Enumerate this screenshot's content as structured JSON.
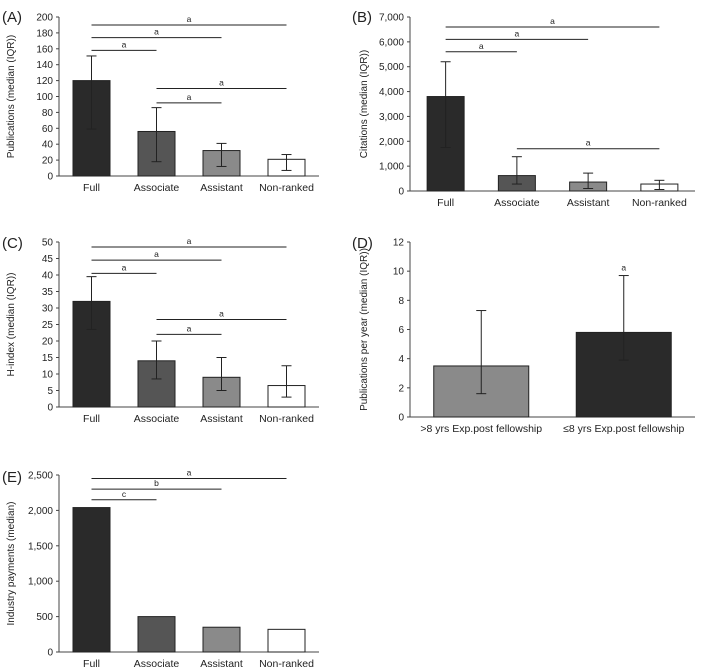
{
  "chart_data": [
    {
      "panel": "(A)",
      "type": "bar",
      "ylabel": "Publications (median (IQR))",
      "categories": [
        "Full",
        "Associate",
        "Assistant",
        "Non-ranked"
      ],
      "values": [
        120,
        56,
        32,
        21
      ],
      "error_low": [
        59,
        18,
        12,
        7
      ],
      "error_high": [
        151,
        86,
        41,
        27
      ],
      "colors": [
        "#2a2a2a",
        "#555555",
        "#8a8a8a",
        "#ffffff"
      ],
      "ylim": [
        0,
        200
      ],
      "yticks": [
        0,
        20,
        40,
        60,
        80,
        100,
        120,
        140,
        160,
        180,
        200
      ],
      "ytick_labels": [
        "0",
        "20",
        "40",
        "60",
        "80",
        "100",
        "120",
        "140",
        "160",
        "180",
        "200"
      ],
      "brackets": [
        {
          "from": 0,
          "to": 1,
          "level": 158,
          "label": "a"
        },
        {
          "from": 0,
          "to": 2,
          "level": 174,
          "label": "a"
        },
        {
          "from": 0,
          "to": 3,
          "level": 190,
          "label": "a"
        },
        {
          "from": 1,
          "to": 2,
          "level": 92,
          "label": "a"
        },
        {
          "from": 1,
          "to": 3,
          "level": 110,
          "label": "a"
        }
      ]
    },
    {
      "panel": "(B)",
      "type": "bar",
      "ylabel": "Citations (median (IQR))",
      "categories": [
        "Full",
        "Associate",
        "Assistant",
        "Non-ranked"
      ],
      "values": [
        3800,
        620,
        360,
        280
      ],
      "error_low": [
        1750,
        280,
        100,
        60
      ],
      "error_high": [
        5200,
        1380,
        720,
        430
      ],
      "colors": [
        "#2a2a2a",
        "#555555",
        "#8a8a8a",
        "#ffffff"
      ],
      "ylim": [
        0,
        7000
      ],
      "yticks": [
        0,
        1000,
        2000,
        3000,
        4000,
        5000,
        6000,
        7000
      ],
      "ytick_labels": [
        "0",
        "1,000",
        "2,000",
        "3,000",
        "4,000",
        "5,000",
        "6,000",
        "7,000"
      ],
      "brackets": [
        {
          "from": 0,
          "to": 1,
          "level": 5600,
          "label": "a"
        },
        {
          "from": 0,
          "to": 2,
          "level": 6100,
          "label": "a"
        },
        {
          "from": 0,
          "to": 3,
          "level": 6600,
          "label": "a"
        },
        {
          "from": 1,
          "to": 3,
          "level": 1700,
          "label": "a"
        }
      ]
    },
    {
      "panel": "(C)",
      "type": "bar",
      "ylabel": "H-index (median (IQR))",
      "categories": [
        "Full",
        "Associate",
        "Assistant",
        "Non-ranked"
      ],
      "values": [
        32,
        14,
        9,
        6.5
      ],
      "error_low": [
        23.5,
        8.5,
        5,
        3
      ],
      "error_high": [
        39.5,
        20,
        15,
        12.5
      ],
      "colors": [
        "#2a2a2a",
        "#555555",
        "#8a8a8a",
        "#ffffff"
      ],
      "ylim": [
        0,
        50
      ],
      "yticks": [
        0,
        5,
        10,
        15,
        20,
        25,
        30,
        35,
        40,
        45,
        50
      ],
      "ytick_labels": [
        "0",
        "5",
        "10",
        "15",
        "20",
        "25",
        "30",
        "35",
        "40",
        "45",
        "50"
      ],
      "brackets": [
        {
          "from": 0,
          "to": 1,
          "level": 40.5,
          "label": "a"
        },
        {
          "from": 0,
          "to": 2,
          "level": 44.5,
          "label": "a"
        },
        {
          "from": 0,
          "to": 3,
          "level": 48.5,
          "label": "a"
        },
        {
          "from": 1,
          "to": 2,
          "level": 22,
          "label": "a"
        },
        {
          "from": 1,
          "to": 3,
          "level": 26.5,
          "label": "a"
        }
      ]
    },
    {
      "panel": "(D)",
      "type": "bar",
      "ylabel": "Publications per year (median (IQR))",
      "categories": [
        ">8 yrs Exp.post fellowship",
        "≤8 yrs Exp.post fellowship"
      ],
      "values": [
        3.5,
        5.8
      ],
      "error_low": [
        1.6,
        3.9
      ],
      "error_high": [
        7.3,
        9.7
      ],
      "colors": [
        "#8a8a8a",
        "#2a2a2a"
      ],
      "ylim": [
        0,
        12
      ],
      "yticks": [
        0,
        2,
        4,
        6,
        8,
        10,
        12
      ],
      "ytick_labels": [
        "0",
        "2",
        "4",
        "6",
        "8",
        "10",
        "12"
      ],
      "annotations": [
        {
          "index": 1,
          "label": "a"
        }
      ],
      "brackets": []
    },
    {
      "panel": "(E)",
      "type": "bar",
      "ylabel": "Industry payments (median)",
      "categories": [
        "Full",
        "Associate",
        "Assistant",
        "Non-ranked"
      ],
      "values": [
        2040,
        500,
        350,
        320
      ],
      "colors": [
        "#2a2a2a",
        "#555555",
        "#8a8a8a",
        "#ffffff"
      ],
      "ylim": [
        0,
        2500
      ],
      "yticks": [
        0,
        500,
        1000,
        1500,
        2000,
        2500
      ],
      "ytick_labels": [
        "0",
        "500",
        "1,000",
        "1,500",
        "2,000",
        "2,500"
      ],
      "brackets": [
        {
          "from": 0,
          "to": 1,
          "level": 2150,
          "label": "c"
        },
        {
          "from": 0,
          "to": 2,
          "level": 2300,
          "label": "b"
        },
        {
          "from": 0,
          "to": 3,
          "level": 2450,
          "label": "a"
        }
      ]
    }
  ]
}
